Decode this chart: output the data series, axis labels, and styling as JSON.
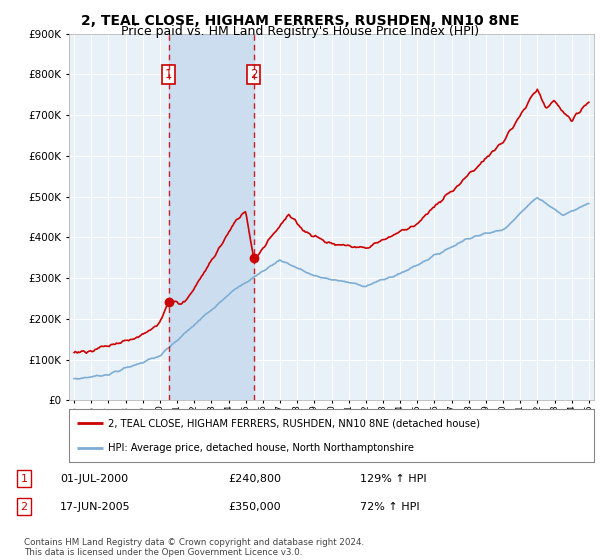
{
  "title": "2, TEAL CLOSE, HIGHAM FERRERS, RUSHDEN, NN10 8NE",
  "subtitle": "Price paid vs. HM Land Registry's House Price Index (HPI)",
  "title_fontsize": 10,
  "subtitle_fontsize": 9,
  "red_label": "2, TEAL CLOSE, HIGHAM FERRERS, RUSHDEN, NN10 8NE (detached house)",
  "blue_label": "HPI: Average price, detached house, North Northamptonshire",
  "transaction1_label": "01-JUL-2000",
  "transaction1_price": "£240,800",
  "transaction1_hpi": "129% ↑ HPI",
  "transaction2_label": "17-JUN-2005",
  "transaction2_price": "£350,000",
  "transaction2_hpi": "72% ↑ HPI",
  "footer": "Contains HM Land Registry data © Crown copyright and database right 2024.\nThis data is licensed under the Open Government Licence v3.0.",
  "ylim_min": 0,
  "ylim_max": 900000,
  "background_color": "#ffffff",
  "plot_bg_color": "#e8f0f8",
  "shade_color": "#ccddf0",
  "grid_color": "#ffffff",
  "red_color": "#cc0000",
  "blue_color": "#7dadd4",
  "vline_color": "#cc0000",
  "marker1_x": 2000.5,
  "marker1_y": 240800,
  "marker2_x": 2005.46,
  "marker2_y": 350000,
  "yticks": [
    0,
    100000,
    200000,
    300000,
    400000,
    500000,
    600000,
    700000,
    800000,
    900000
  ],
  "xlim_min": 1994.7,
  "xlim_max": 2025.3
}
